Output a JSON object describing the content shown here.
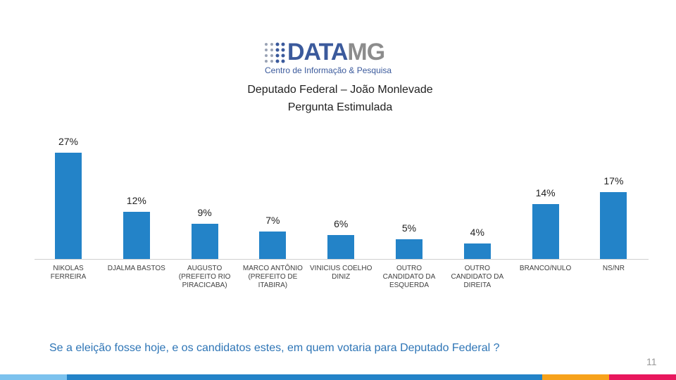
{
  "logo": {
    "name": "DATA",
    "name_accent": "MG",
    "tagline": "Centro de Informação & Pesquisa"
  },
  "chart_data": {
    "type": "bar",
    "title": "Deputado Federal – João Monlevade",
    "subtitle": "Pergunta Estimulada",
    "categories": [
      "NIKOLAS FERREIRA",
      "DJALMA BASTOS",
      "AUGUSTO (PREFEITO RIO PIRACICABA)",
      "MARCO ANTÔNIO (PREFEITO DE ITABIRA)",
      "VINICIUS COELHO DINIZ",
      "OUTRO CANDIDATO DA ESQUERDA",
      "OUTRO CANDIDATO DA DIREITA",
      "BRANCO/NULO",
      "NS/NR"
    ],
    "values": [
      27,
      12,
      9,
      7,
      6,
      5,
      4,
      14,
      17
    ],
    "value_labels": [
      "27%",
      "12%",
      "9%",
      "7%",
      "6%",
      "5%",
      "4%",
      "14%",
      "17%"
    ],
    "color": "#2383c8"
  },
  "question": "Se a eleição fosse hoje, e os candidatos estes, em quem votaria para Deputado Federal ?",
  "page_number": "11"
}
